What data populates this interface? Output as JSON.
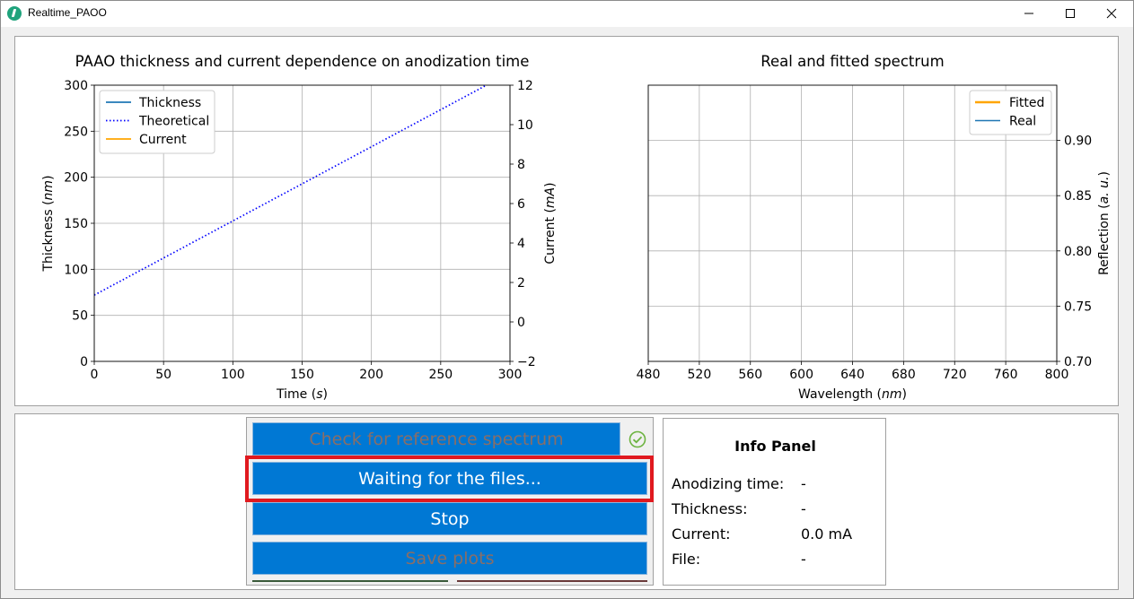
{
  "window": {
    "title": "Realtime_PAOO"
  },
  "chart_data": [
    {
      "type": "line",
      "title": "PAAO thickness and current dependence on anodization time",
      "xlabel": "Time (s)",
      "ylabel": "Thickness (nm)",
      "ylabel_right": "Current (mA)",
      "xlim": [
        0,
        300
      ],
      "ylim": [
        0,
        300
      ],
      "ylim_right": [
        -2,
        12
      ],
      "xticks": [
        "0",
        "50",
        "100",
        "150",
        "200",
        "250",
        "300"
      ],
      "yticks": [
        "0",
        "50",
        "100",
        "150",
        "200",
        "250",
        "300"
      ],
      "yticks_right": [
        "−2",
        "0",
        "2",
        "4",
        "6",
        "8",
        "10",
        "12"
      ],
      "grid": true,
      "legend_position": "top-left",
      "series": [
        {
          "name": "Thickness",
          "color": "#1f77b4",
          "style": "solid",
          "x": [],
          "y": []
        },
        {
          "name": "Theoretical",
          "color": "#0000ff",
          "style": "dotted",
          "x": [
            0,
            283
          ],
          "y": [
            72,
            300
          ]
        },
        {
          "name": "Current",
          "color": "#ffa500",
          "style": "solid",
          "x": [],
          "y": []
        }
      ]
    },
    {
      "type": "line",
      "title": "Real and fitted spectrum",
      "xlabel": "Wavelength (nm)",
      "ylabel": "Reflection (a. u.)",
      "xlim": [
        480,
        800
      ],
      "ylim": [
        0.7,
        0.95
      ],
      "xticks": [
        "480",
        "520",
        "560",
        "600",
        "640",
        "680",
        "720",
        "760",
        "800"
      ],
      "yticks": [
        "0.70",
        "0.75",
        "0.80",
        "0.85",
        "0.90"
      ],
      "yaxis_side": "right",
      "grid": true,
      "legend_position": "top-right",
      "series": [
        {
          "name": "Fitted",
          "color": "#ffa500",
          "style": "solid",
          "x": [],
          "y": []
        },
        {
          "name": "Real",
          "color": "#1f77b4",
          "style": "solid",
          "x": [],
          "y": []
        }
      ]
    }
  ],
  "controls": {
    "check_ref_label": "Check for reference spectrum",
    "waiting_label": "Waiting for the files...",
    "stop_label": "Stop",
    "save_label": "Save plots",
    "check_icon_color": "#6cb33f",
    "button_color": "#0078d4",
    "highlight_color": "#e0191f"
  },
  "info_panel": {
    "title": "Info Panel",
    "rows": [
      {
        "label": "Anodizing time:",
        "value": "-"
      },
      {
        "label": "Thickness:",
        "value": "-"
      },
      {
        "label": "Current:",
        "value": "0.0 mA"
      },
      {
        "label": "File:",
        "value": "-"
      }
    ]
  }
}
